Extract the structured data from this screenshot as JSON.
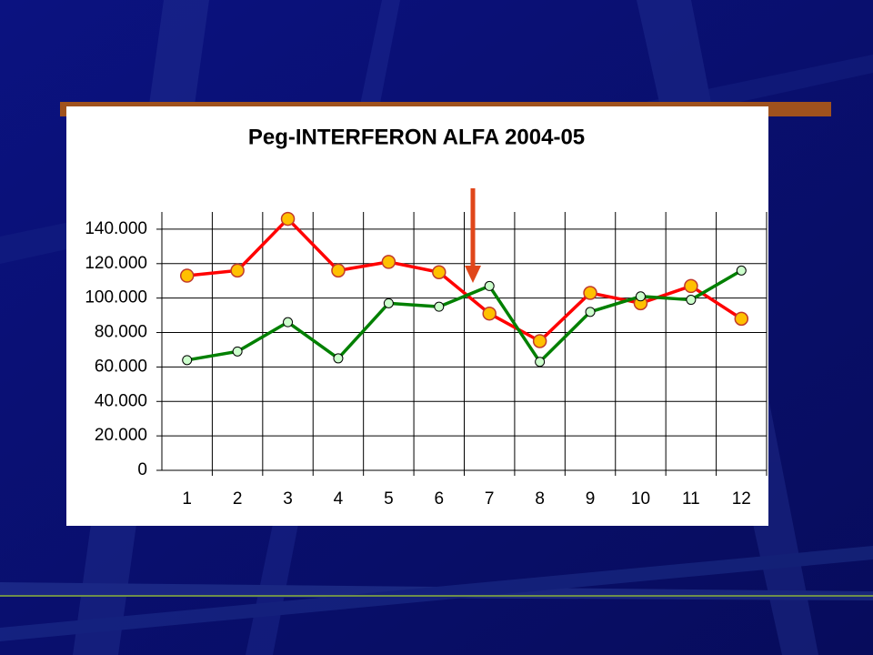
{
  "chart_data": {
    "type": "line",
    "title": "Peg-INTERFERON ALFA 2004-05",
    "categories": [
      "1",
      "2",
      "3",
      "4",
      "5",
      "6",
      "7",
      "8",
      "9",
      "10",
      "11",
      "12"
    ],
    "series": [
      {
        "color": "#ff0000",
        "marker_color": "#ffc000",
        "values": [
          113000,
          116000,
          146000,
          116000,
          121000,
          115000,
          91000,
          75000,
          103000,
          97000,
          107000,
          88000
        ]
      },
      {
        "color": "#008000",
        "marker_color": "#ccffcc",
        "values": [
          64000,
          69000,
          86000,
          65000,
          97000,
          95000,
          107000,
          63000,
          92000,
          101000,
          99000,
          116000
        ]
      }
    ],
    "ylim": [
      0,
      150000
    ],
    "yticks": [
      0,
      {
        "value": 20000,
        "label": "20.000"
      },
      {
        "value": 40000,
        "label": "40.000"
      },
      {
        "value": 60000,
        "label": "60.000"
      },
      {
        "value": 80000,
        "label": "80.000"
      },
      {
        "value": 100000,
        "label": "100.000"
      },
      {
        "value": 120000,
        "label": "120.000"
      },
      {
        "value": 140000,
        "label": "140.000"
      }
    ],
    "grid": true
  }
}
